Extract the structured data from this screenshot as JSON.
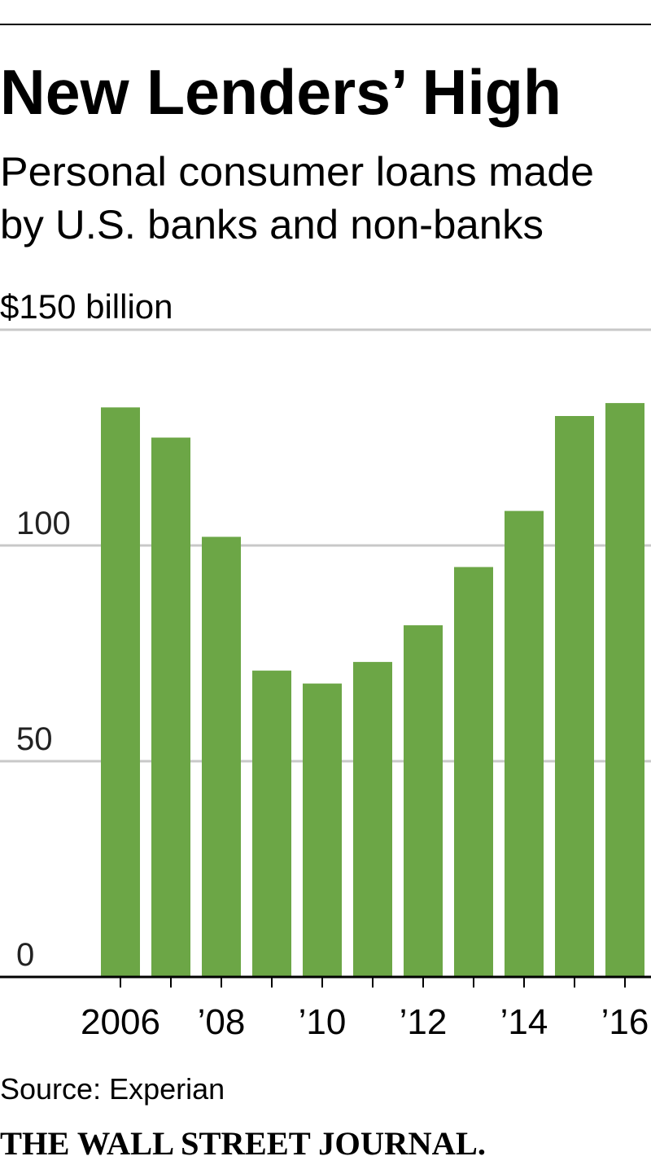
{
  "chart_data": {
    "type": "bar",
    "title": "New Lenders’ High",
    "subtitle": [
      "Personal consumer loans made",
      "by U.S. banks and non-banks"
    ],
    "categories": [
      "2006",
      null,
      "’08",
      null,
      "’10",
      null,
      "’12",
      null,
      "’14",
      null,
      "’16"
    ],
    "values": [
      132,
      125,
      102,
      71,
      68,
      73,
      81.5,
      95,
      108,
      130,
      133
    ],
    "color": "#6ca646",
    "ylim": [
      0,
      150
    ],
    "yticks": [
      0,
      50,
      100,
      {
        "value": 150,
        "label": "$150 billion"
      }
    ],
    "grid": true,
    "source": "Source: Experian",
    "publisher": "THE WALL STREET JOURNAL."
  }
}
